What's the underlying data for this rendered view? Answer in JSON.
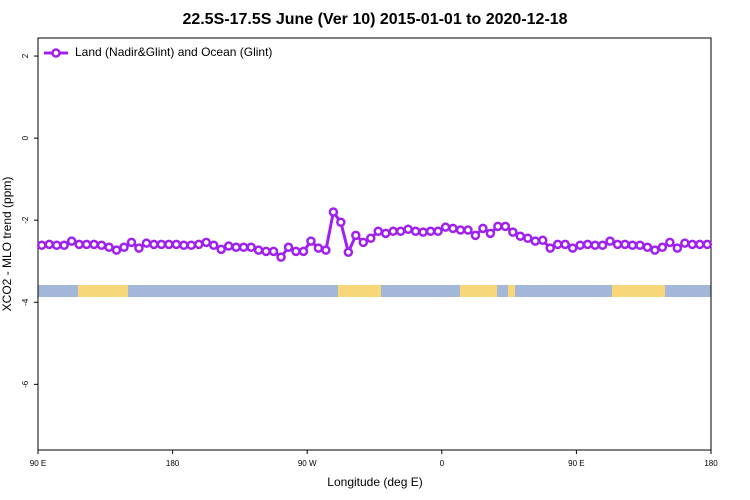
{
  "chart_data": {
    "type": "line",
    "title": "22.5S-17.5S June (Ver 10)   2015-01-01 to 2020-12-18",
    "x_label": "Longitude (deg E)",
    "y_label": "XCO2 - MLO trend (ppm)",
    "xlim": [
      90,
      540
    ],
    "ylim": [
      -7.6,
      2.44
    ],
    "xticks": [
      {
        "value": 90,
        "label": "90 E"
      },
      180,
      {
        "value": 270,
        "label": "90 W"
      },
      {
        "value": 360,
        "label": "0"
      },
      {
        "value": 450,
        "label": "90 E"
      },
      {
        "value": 540,
        "label": "180"
      }
    ],
    "yticks": [
      2,
      0,
      -2,
      -4,
      -6
    ],
    "legend": "top-left",
    "x": [
      92.5,
      97.5,
      102.5,
      107.5,
      112.5,
      117.5,
      122.5,
      127.5,
      132.5,
      137.5,
      142.5,
      147.5,
      152.5,
      157.5,
      162.5,
      167.5,
      172.5,
      177.5,
      182.5,
      187.5,
      192.5,
      197.5,
      202.5,
      207.5,
      212.5,
      217.5,
      222.5,
      227.5,
      232.5,
      237.5,
      242.5,
      247.5,
      252.5,
      257.5,
      262.5,
      267.5,
      272.5,
      277.5,
      282.5,
      287.5,
      292.5,
      297.5,
      302.5,
      307.5,
      312.5,
      317.5,
      322.5,
      327.5,
      332.5,
      337.5,
      342.5,
      347.5,
      352.5,
      357.5,
      362.5,
      367.5,
      372.5,
      377.5,
      382.5,
      387.5,
      392.5,
      397.5,
      402.5,
      407.5,
      412.5,
      417.5,
      422.5,
      427.5,
      432.5,
      437.5,
      442.5,
      447.5,
      452.5,
      457.5,
      462.5,
      467.5,
      472.5,
      477.5,
      482.5,
      487.5,
      492.5,
      497.5,
      502.5,
      507.5,
      512.5,
      517.5,
      522.5,
      527.5,
      532.5,
      537.5
    ],
    "series": [
      {
        "name": "Land (Nadir&Glint) and Ocean (Glint)",
        "color": "#a020f0",
        "values": [
          -2.61,
          -2.59,
          -2.61,
          -2.61,
          -2.51,
          -2.59,
          -2.59,
          -2.59,
          -2.61,
          -2.66,
          -2.73,
          -2.66,
          -2.54,
          -2.68,
          -2.56,
          -2.59,
          -2.59,
          -2.59,
          -2.59,
          -2.61,
          -2.61,
          -2.59,
          -2.54,
          -2.61,
          -2.71,
          -2.63,
          -2.66,
          -2.66,
          -2.66,
          -2.73,
          -2.76,
          -2.76,
          -2.9,
          -2.66,
          -2.76,
          -2.76,
          -2.51,
          -2.68,
          -2.73,
          -1.8,
          -2.05,
          -2.78,
          -2.37,
          -2.54,
          -2.44,
          -2.27,
          -2.32,
          -2.27,
          -2.27,
          -2.22,
          -2.27,
          -2.29,
          -2.27,
          -2.27,
          -2.17,
          -2.2,
          -2.24,
          -2.24,
          -2.37,
          -2.2,
          -2.32,
          -2.15,
          -2.15,
          -2.29,
          -2.39,
          -2.44,
          -2.51,
          -2.49,
          -2.68,
          -2.59,
          -2.59,
          -2.68,
          -2.61,
          -2.59,
          -2.61,
          -2.61,
          -2.51,
          -2.59,
          -2.59,
          -2.61,
          -2.61,
          -2.66,
          -2.73,
          -2.66,
          -2.54,
          -2.68,
          -2.56,
          -2.59,
          -2.59,
          -2.59
        ]
      }
    ]
  }
}
